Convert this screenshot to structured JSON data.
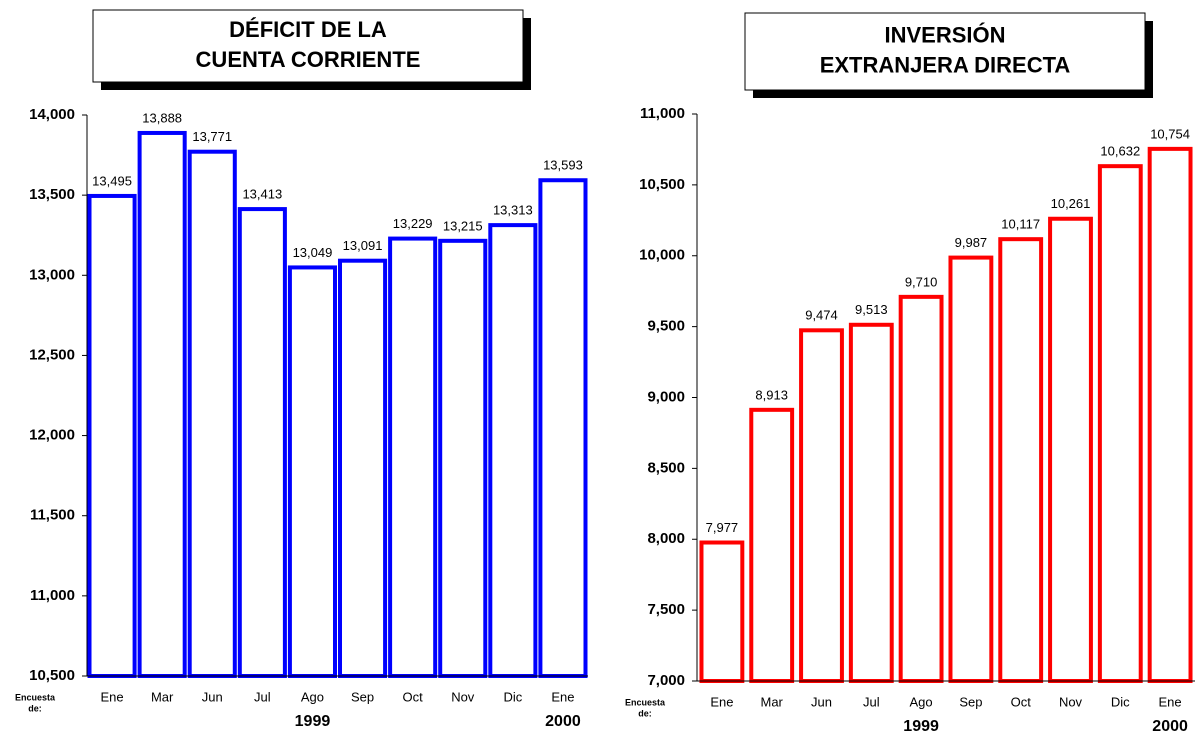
{
  "chart_data": [
    {
      "type": "bar",
      "title": [
        "DÉFICIT DE LA",
        "CUENTA CORRIENTE"
      ],
      "x_label": [
        "Encuesta",
        "de:"
      ],
      "year_labels": [
        "1999",
        "2000"
      ],
      "categories": [
        "Ene",
        "Mar",
        "Jun",
        "Jul",
        "Ago",
        "Sep",
        "Oct",
        "Nov",
        "Dic",
        "Ene"
      ],
      "values": [
        13495,
        13888,
        13771,
        13413,
        13049,
        13091,
        13229,
        13215,
        13313,
        13593
      ],
      "value_labels": [
        "13,495",
        "13,888",
        "13,771",
        "13,413",
        "13,049",
        "13,091",
        "13,229",
        "13,215",
        "13,313",
        "13,593"
      ],
      "color": "#0000ff",
      "ylim": [
        10500,
        14000
      ],
      "yticks": [
        {
          "value": 10500,
          "label": "10,500"
        },
        {
          "value": 11000,
          "label": "11,000"
        },
        {
          "value": 11500,
          "label": "11,500"
        },
        {
          "value": 12000,
          "label": "12,000"
        },
        {
          "value": 12500,
          "label": "12,500"
        },
        {
          "value": 13000,
          "label": "13,000"
        },
        {
          "value": 13500,
          "label": "13,500"
        },
        {
          "value": 14000,
          "label": "14,000"
        }
      ]
    },
    {
      "type": "bar",
      "title": [
        "INVERSIÓN",
        "EXTRANJERA DIRECTA"
      ],
      "x_label": [
        "Encuesta",
        "de:"
      ],
      "year_labels": [
        "1999",
        "2000"
      ],
      "categories": [
        "Ene",
        "Mar",
        "Jun",
        "Jul",
        "Ago",
        "Sep",
        "Oct",
        "Nov",
        "Dic",
        "Ene"
      ],
      "values": [
        7977,
        8913,
        9474,
        9513,
        9710,
        9987,
        10117,
        10261,
        10632,
        10754
      ],
      "value_labels": [
        "7,977",
        "8,913",
        "9,474",
        "9,513",
        "9,710",
        "9,987",
        "10,117",
        "10,261",
        "10,632",
        "10,754"
      ],
      "color": "#ff0000",
      "ylim": [
        7000,
        11000
      ],
      "yticks": [
        {
          "value": 7000,
          "label": "7,000"
        },
        {
          "value": 7500,
          "label": "7,500"
        },
        {
          "value": 8000,
          "label": "8,000"
        },
        {
          "value": 8500,
          "label": "8,500"
        },
        {
          "value": 9000,
          "label": "9,000"
        },
        {
          "value": 9500,
          "label": "9,500"
        },
        {
          "value": 10000,
          "label": "10,000"
        },
        {
          "value": 10500,
          "label": "10,500"
        },
        {
          "value": 11000,
          "label": "11,000"
        }
      ]
    }
  ]
}
